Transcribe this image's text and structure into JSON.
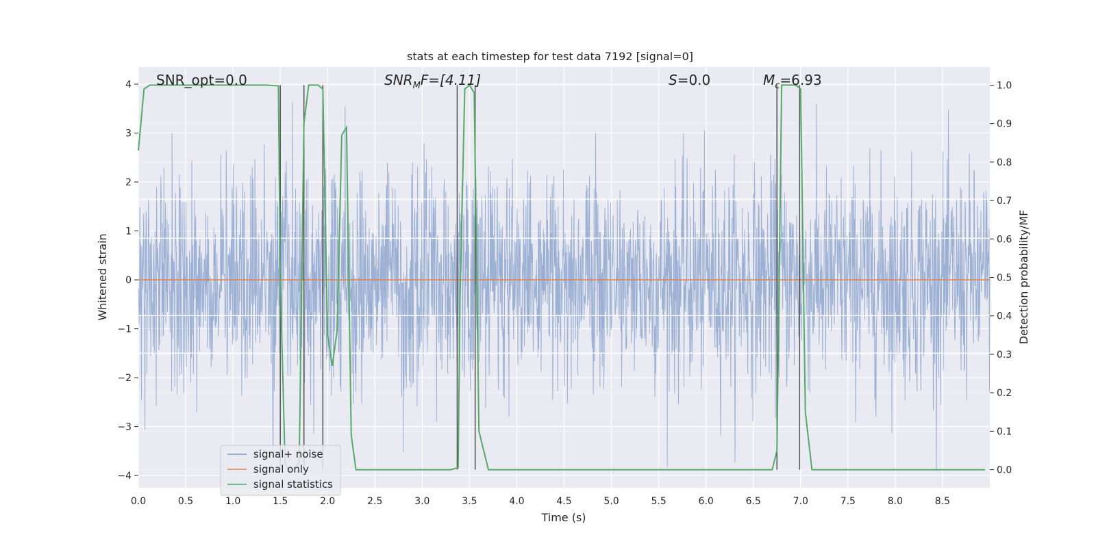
{
  "chart_data": {
    "type": "line",
    "title": "stats at each timestep for test data 7192 [signal=0]",
    "xlabel": "Time (s)",
    "ylabel": "Whitened strain",
    "y2label": "Detection probability/MF",
    "xlim": [
      0.0,
      9.0
    ],
    "ylim": [
      -4.25,
      4.35
    ],
    "y2lim": [
      -0.047,
      1.047
    ],
    "grid": true,
    "legend_position": "lower-left",
    "xticks": [
      "0.0",
      "0.5",
      "1.0",
      "1.5",
      "2.0",
      "2.5",
      "3.0",
      "3.5",
      "4.0",
      "4.5",
      "5.0",
      "5.5",
      "6.0",
      "6.5",
      "7.0",
      "7.5",
      "8.0",
      "8.5"
    ],
    "yticks": [
      "4",
      "3",
      "2",
      "1",
      "0",
      "−1",
      "−2",
      "−3",
      "−4"
    ],
    "y2ticks": [
      "1.0",
      "0.9",
      "0.8",
      "0.7",
      "0.6",
      "0.5",
      "0.4",
      "0.3",
      "0.2",
      "0.1",
      "0.0"
    ],
    "annotations": {
      "snr_opt": "SNR_opt=0.0",
      "snr_mf_main": "SNR",
      "snr_mf_sub": "M",
      "snr_mf_tail": "F=[4.11]",
      "s_var": "S",
      "s_tail": "=0.0",
      "mc_var": "M",
      "mc_sub": "c",
      "mc_tail": "=6.93"
    },
    "legend": [
      {
        "name": "signal+ noise",
        "color": "#7e9ac8"
      },
      {
        "name": "signal only",
        "color": "#dd8452"
      },
      {
        "name": "signal statistics",
        "color": "#55a868"
      }
    ],
    "series": [
      {
        "name": "signal+ noise",
        "color": "#7e9ac8",
        "axis": "left",
        "kind": "dense_noise",
        "samples": 2200,
        "sigma": 1.1,
        "peak_max": 4.0,
        "trough_min": -3.9,
        "t_start": 0.0,
        "t_end": 9.0
      },
      {
        "name": "signal only",
        "color": "#dd8452",
        "axis": "left",
        "x": [
          0.0,
          9.0
        ],
        "y": [
          0.0,
          0.0
        ]
      },
      {
        "name": "signal statistics",
        "color": "#55a868",
        "axis": "right",
        "x": [
          0.0,
          0.06,
          0.12,
          0.3,
          0.6,
          1.0,
          1.2,
          1.35,
          1.48,
          1.5,
          1.55,
          1.58,
          1.65,
          1.7,
          1.75,
          1.8,
          1.85,
          1.9,
          1.95,
          2.0,
          2.05,
          2.1,
          2.15,
          2.2,
          2.25,
          2.3,
          2.5,
          3.0,
          3.3,
          3.38,
          3.4,
          3.45,
          3.5,
          3.55,
          3.6,
          3.7,
          4.0,
          5.0,
          6.0,
          6.5,
          6.6,
          6.7,
          6.75,
          6.8,
          6.9,
          6.95,
          7.0,
          7.05,
          7.12,
          7.5,
          8.0,
          8.5,
          8.95
        ],
        "y": [
          0.83,
          0.99,
          1.0,
          1.0,
          1.0,
          1.0,
          1.0,
          1.0,
          0.998,
          0.5,
          0.02,
          0.0,
          0.0,
          0.02,
          0.9,
          1.0,
          1.0,
          1.0,
          0.99,
          0.35,
          0.27,
          0.36,
          0.87,
          0.89,
          0.09,
          0.0,
          0.0,
          0.0,
          0.0,
          0.005,
          0.45,
          0.99,
          1.0,
          0.98,
          0.1,
          0.0,
          0.0,
          0.0,
          0.0,
          0.0,
          0.0,
          0.0,
          0.05,
          1.0,
          1.0,
          1.0,
          0.99,
          0.15,
          0.0,
          0.0,
          0.0,
          0.0,
          0.0
        ]
      }
    ],
    "vertical_markers": {
      "color": "#505050",
      "x": [
        1.5,
        1.75,
        1.95,
        3.37,
        3.56,
        6.75,
        6.99
      ],
      "y_top": 1.0,
      "y_bottom": 0.0
    },
    "horizontal_guides_left": [
      -1.5,
      -0.73,
      0.85,
      1.65
    ]
  }
}
